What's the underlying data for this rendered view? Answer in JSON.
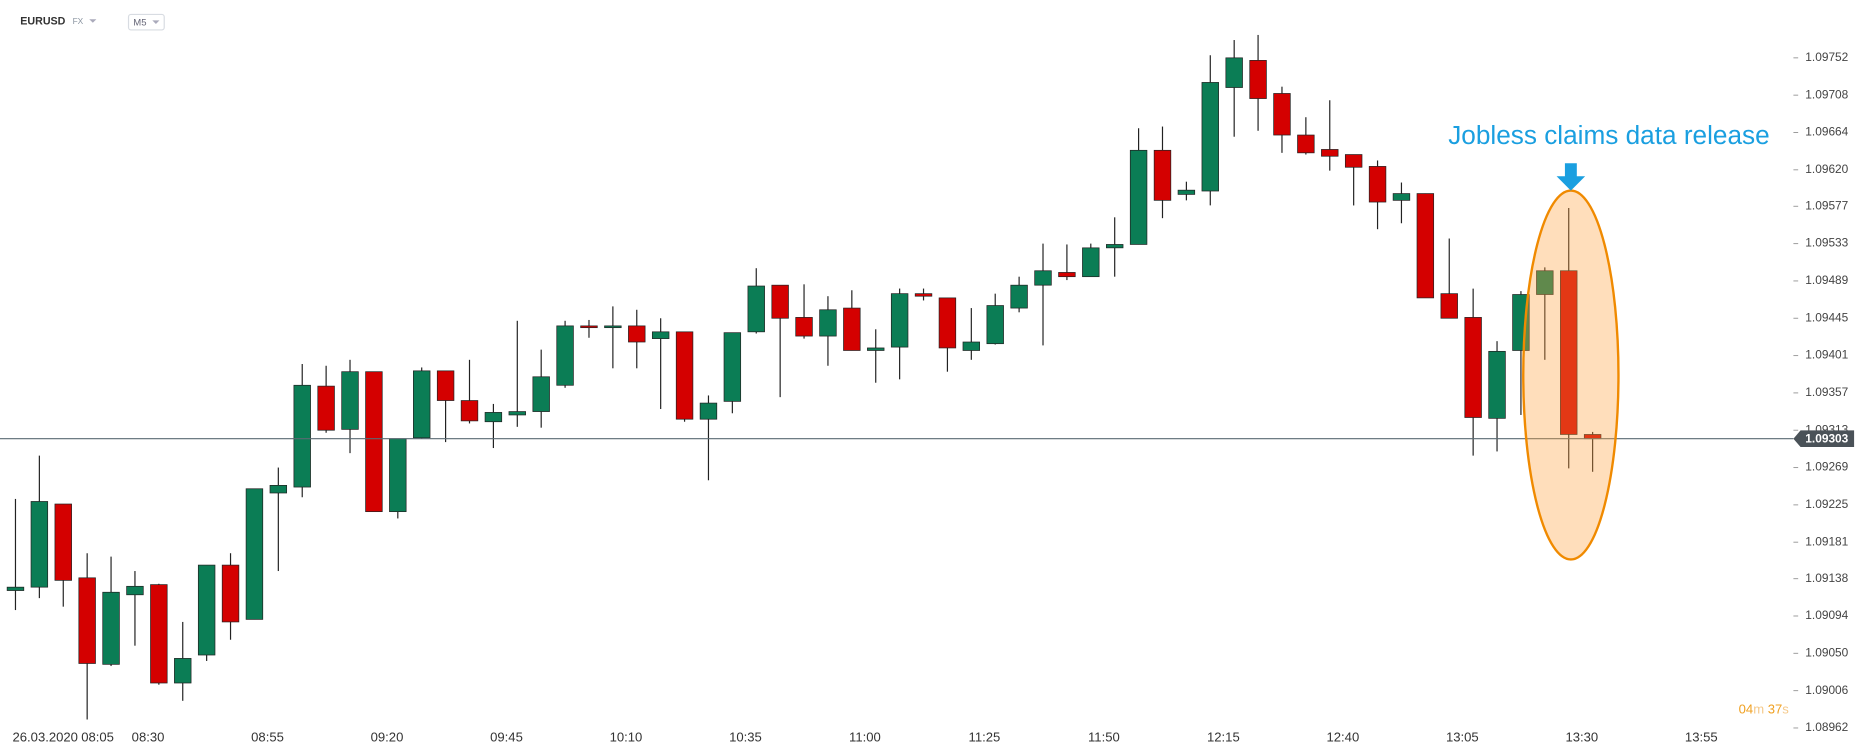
{
  "chart_data": {
    "type": "candlestick",
    "symbol": "EURUSD",
    "market": "FX",
    "interval": "M5",
    "date_label": "26.03.2020",
    "annotation": "Jobless claims data release",
    "countdown": {
      "minutes": "04",
      "minutes_unit": "m",
      "seconds": "37",
      "seconds_unit": "s"
    },
    "current_price": 1.09303,
    "up_color": "#0b7d55",
    "down_color": "#d40000",
    "categories": [
      "08:05",
      null,
      null,
      null,
      null,
      "08:30",
      null,
      null,
      null,
      null,
      "08:55",
      null,
      null,
      null,
      null,
      "09:20",
      null,
      null,
      null,
      null,
      "09:45",
      null,
      null,
      null,
      null,
      "10:10",
      null,
      null,
      null,
      null,
      "10:35",
      null,
      null,
      null,
      null,
      "11:00",
      null,
      null,
      null,
      null,
      "11:25",
      null,
      null,
      null,
      null,
      "11:50",
      null,
      null,
      null,
      null,
      "12:15",
      null,
      null,
      null,
      null,
      "12:40",
      null,
      null,
      null,
      null,
      "13:05",
      null,
      null,
      null,
      null,
      "13:30",
      null,
      null,
      null,
      null,
      "13:55"
    ],
    "open": [
      1.09124,
      1.09128,
      1.09226,
      1.09139,
      1.09037,
      1.09119,
      1.09131,
      1.09015,
      1.09048,
      1.09154,
      1.0909,
      1.09239,
      1.09246,
      1.09365,
      1.09314,
      1.09382,
      1.09217,
      1.09304,
      1.09383,
      1.09348,
      1.09323,
      1.09331,
      1.09335,
      1.09366,
      1.09436,
      1.09435,
      1.09436,
      1.09421,
      1.09429,
      1.09326,
      1.09347,
      1.09429,
      1.09484,
      1.09446,
      1.09424,
      1.09457,
      1.09407,
      1.09411,
      1.09474,
      1.09469,
      1.09407,
      1.09415,
      1.09457,
      1.09484,
      1.09499,
      1.09494,
      1.09528,
      1.09532,
      1.09643,
      1.09591,
      1.09595,
      1.09717,
      1.09749,
      1.0971,
      1.09661,
      1.09644,
      1.09638,
      1.09624,
      1.09584,
      1.09592,
      1.09474,
      1.09446,
      1.09327,
      1.09407,
      1.09473,
      1.09501,
      1.09308,
      null,
      null,
      null,
      null
    ],
    "high": [
      1.09232,
      1.09283,
      1.09226,
      1.09168,
      1.09164,
      1.09147,
      1.09132,
      1.09087,
      1.09154,
      1.09168,
      1.09244,
      1.09269,
      1.09391,
      1.09389,
      1.09396,
      1.09382,
      1.09303,
      1.09387,
      1.09383,
      1.09396,
      1.09344,
      1.09442,
      1.09408,
      1.09442,
      1.09443,
      1.09459,
      1.09455,
      1.09445,
      1.09429,
      1.09354,
      1.09428,
      1.09504,
      1.09484,
      1.09485,
      1.09471,
      1.09478,
      1.09432,
      1.0948,
      1.0948,
      1.09469,
      1.09457,
      1.09474,
      1.09494,
      1.09533,
      1.09532,
      1.09533,
      1.09564,
      1.09669,
      1.09671,
      1.09606,
      1.09755,
      1.09773,
      1.09779,
      1.09718,
      1.09682,
      1.09702,
      1.09638,
      1.09631,
      1.09605,
      1.09592,
      1.09539,
      1.0948,
      1.09418,
      1.09477,
      1.09505,
      1.09575,
      1.09311,
      null,
      null,
      null,
      null
    ],
    "low": [
      1.09101,
      1.09115,
      1.09105,
      1.08972,
      1.09035,
      1.09059,
      1.09013,
      1.08994,
      1.09041,
      1.09066,
      1.0909,
      1.09147,
      1.09234,
      1.0931,
      1.09286,
      1.09217,
      1.09209,
      1.09303,
      1.09299,
      1.09321,
      1.09292,
      1.09317,
      1.09316,
      1.09363,
      1.09422,
      1.09386,
      1.09386,
      1.09338,
      1.09323,
      1.09254,
      1.09333,
      1.09427,
      1.09352,
      1.09421,
      1.09389,
      1.09407,
      1.09369,
      1.09373,
      1.09466,
      1.09382,
      1.09396,
      1.09414,
      1.09452,
      1.09413,
      1.0949,
      1.09494,
      1.09494,
      1.09532,
      1.09563,
      1.09584,
      1.09578,
      1.09659,
      1.09666,
      1.0964,
      1.09638,
      1.09619,
      1.09578,
      1.0955,
      1.09557,
      1.09469,
      1.09445,
      1.09283,
      1.09288,
      1.09331,
      1.09396,
      1.09268,
      1.09264,
      null,
      null,
      null,
      null
    ],
    "close": [
      1.09128,
      1.09229,
      1.09136,
      1.09038,
      1.09122,
      1.09129,
      1.09015,
      1.09044,
      1.09154,
      1.09087,
      1.09244,
      1.09248,
      1.09366,
      1.09313,
      1.09382,
      1.09217,
      1.09303,
      1.09383,
      1.09348,
      1.09324,
      1.09334,
      1.09335,
      1.09376,
      1.09436,
      1.09434,
      1.09436,
      1.09417,
      1.09429,
      1.09326,
      1.09345,
      1.09428,
      1.09483,
      1.09445,
      1.09424,
      1.09455,
      1.09407,
      1.0941,
      1.09474,
      1.09471,
      1.0941,
      1.09417,
      1.0946,
      1.09484,
      1.09501,
      1.09494,
      1.09528,
      1.09532,
      1.09643,
      1.09584,
      1.09596,
      1.09723,
      1.09752,
      1.09704,
      1.09661,
      1.0964,
      1.09636,
      1.09623,
      1.09582,
      1.09592,
      1.09469,
      1.09445,
      1.09328,
      1.09406,
      1.09473,
      1.09501,
      1.09308,
      1.09303,
      null,
      null,
      null,
      null
    ],
    "ylim": [
      1.0896,
      1.0982
    ],
    "yticks": [
      1.09752,
      1.09708,
      1.09664,
      {
        "value": 1.0962,
        "label": "1.09620"
      },
      1.09577,
      1.09533,
      1.09489,
      1.09445,
      1.09401,
      1.09357,
      1.09313,
      1.09269,
      1.09225,
      1.09181,
      1.09138,
      1.09094,
      {
        "value": 1.0905,
        "label": "1.09050"
      },
      1.09006,
      1.08962
    ]
  }
}
